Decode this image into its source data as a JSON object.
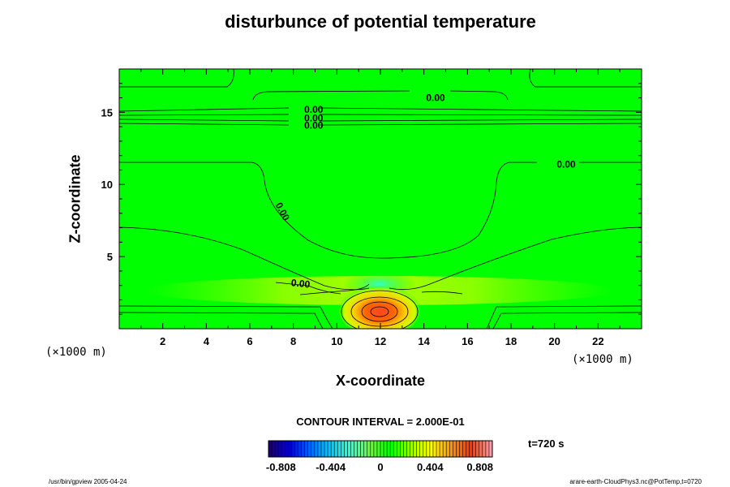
{
  "chart_data": {
    "type": "heatmap",
    "title": "disturbunce of potential temperature",
    "xlabel": "X-coordinate",
    "ylabel": "Z-coordinate",
    "x_unit": "(×1000 m)",
    "y_unit": "(×1000 m)",
    "xlim": [
      0,
      24
    ],
    "ylim": [
      0,
      18
    ],
    "x_ticks": [
      2,
      4,
      6,
      8,
      10,
      12,
      14,
      16,
      18,
      20,
      22
    ],
    "y_ticks": [
      5,
      10,
      15
    ],
    "contour_interval_label": "CONTOUR INTERVAL = 2.000E-01",
    "time_label": "t=720 s",
    "contour_labels": [
      {
        "text": "0.00",
        "x": 14.1,
        "z": 16.0
      },
      {
        "text": "0.00",
        "x": 8.5,
        "z": 15.2
      },
      {
        "text": "0.00",
        "x": 8.5,
        "z": 14.6
      },
      {
        "text": "0.00",
        "x": 8.5,
        "z": 14.1
      },
      {
        "text": "0.00",
        "x": 20.1,
        "z": 11.4
      },
      {
        "text": "0.00",
        "x": 7.3,
        "z": 8.7
      },
      {
        "text": "0.00",
        "x": 7.9,
        "z": 3.2
      }
    ],
    "features": {
      "warm_core": {
        "x": 12.0,
        "z": 1.3,
        "max": 0.9
      },
      "cool_region": {
        "x": 12.0,
        "z": 3.3,
        "min": -0.25
      }
    },
    "colorbar": {
      "min": -0.909,
      "max": 0.909,
      "tick_values": [
        -0.808,
        -0.404,
        0,
        0.404,
        0.808
      ],
      "tick_labels": [
        "-0.808",
        "-0.404",
        "0",
        "0.404",
        "0.808"
      ],
      "colors": [
        "#1a0075",
        "#0000cc",
        "#0066ff",
        "#00ccff",
        "#33ffcc",
        "#66ff33",
        "#00ff00",
        "#99ff00",
        "#ffff00",
        "#ff9900",
        "#ff3300",
        "#ff99aa"
      ]
    }
  },
  "footer": {
    "left": "/usr/bin/gpview 2005-04-24",
    "right": "arare-earth-CloudPhys3.nc@PotTemp,t=0720"
  }
}
